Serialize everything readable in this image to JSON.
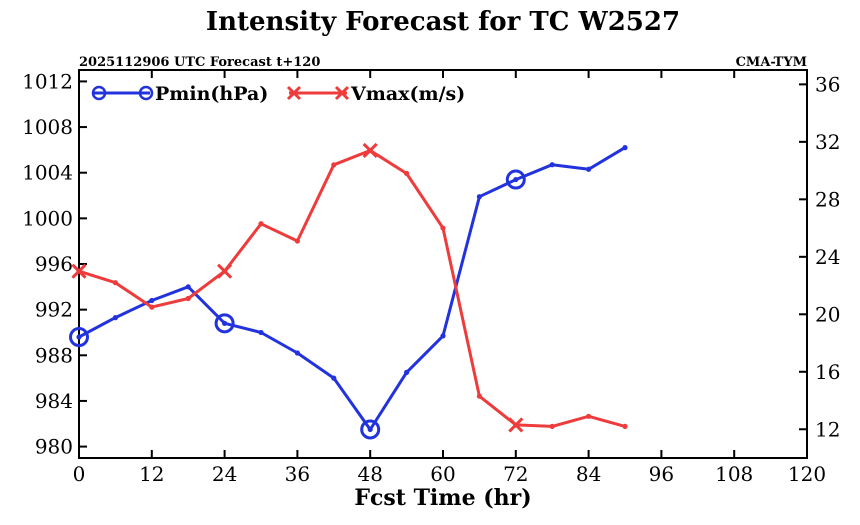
{
  "chart_data": {
    "type": "line",
    "title": "Intensity Forecast for TC W2527",
    "subtitle_left": "2025112906 UTC Forecast t+120",
    "subtitle_right": "CMA-TYM",
    "xlabel": "Fcst Time (hr)",
    "xlim": [
      0,
      120
    ],
    "xticks": [
      "0",
      "12",
      "24",
      "36",
      "48",
      "60",
      "72",
      "84",
      "96",
      "108",
      "120"
    ],
    "y_left": {
      "lim": [
        979,
        1013
      ],
      "ticks": [
        "980",
        "984",
        "988",
        "992",
        "996",
        "1000",
        "1004",
        "1008",
        "1012"
      ]
    },
    "y_right": {
      "lim": [
        10,
        37
      ],
      "ticks": [
        "12",
        "16",
        "20",
        "24",
        "28",
        "32",
        "36"
      ]
    },
    "x": [
      0,
      6,
      12,
      18,
      24,
      30,
      36,
      42,
      48,
      54,
      60,
      66,
      72,
      78,
      84,
      90
    ],
    "series": [
      {
        "name": "Pmin(hPa)",
        "axis": "left",
        "color": "#2233dd",
        "marker": "circle",
        "values": [
          989.6,
          991.3,
          992.8,
          994.0,
          990.8,
          990.0,
          988.2,
          986.0,
          981.5,
          986.5,
          989.7,
          1001.9,
          1003.4,
          1004.7,
          1004.3,
          1006.2
        ],
        "markers_at": [
          0,
          24,
          48,
          72
        ]
      },
      {
        "name": "Vmax(m/s)",
        "axis": "right",
        "color": "#ee3b3b",
        "marker": "x",
        "values": [
          23.0,
          22.2,
          20.5,
          21.1,
          23.0,
          26.3,
          25.1,
          30.4,
          31.4,
          29.8,
          26.0,
          14.3,
          12.3,
          12.2,
          12.9,
          12.2
        ],
        "markers_at": [
          0,
          24,
          48,
          72
        ]
      }
    ]
  }
}
